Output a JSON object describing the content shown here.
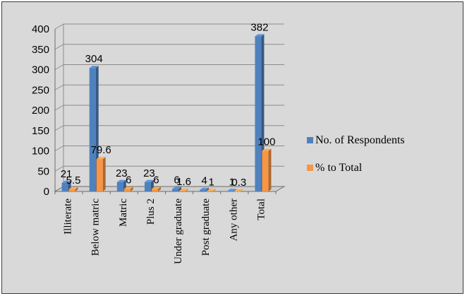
{
  "chart_data": {
    "type": "bar",
    "categories": [
      "Illiterate",
      "Below matric",
      "Matric",
      "Plus 2",
      "Under graduate",
      "Post graduate",
      "Any other",
      "Total"
    ],
    "series": [
      {
        "name": "No. of Respondents",
        "values": [
          21,
          304,
          23,
          23,
          6,
          4,
          1,
          382
        ],
        "labels": [
          "21",
          "304",
          "23",
          "23",
          "6",
          "4",
          "1",
          "382"
        ],
        "color": "#4f81bd"
      },
      {
        "name": "% to Total",
        "values": [
          5.5,
          79.6,
          6,
          6,
          1.6,
          1,
          0.3,
          100
        ],
        "labels": [
          "5.5",
          "79.6",
          "6",
          "6",
          "1.6",
          "1",
          "0.3",
          "100"
        ],
        "color": "#f79646"
      }
    ],
    "ylim": [
      0,
      400
    ],
    "yticks": [
      0,
      50,
      100,
      150,
      200,
      250,
      300,
      350,
      400
    ],
    "grid": true,
    "legend_position": "right",
    "title": "",
    "xlabel": "",
    "ylabel": "",
    "style": "3d-clustered-column"
  }
}
